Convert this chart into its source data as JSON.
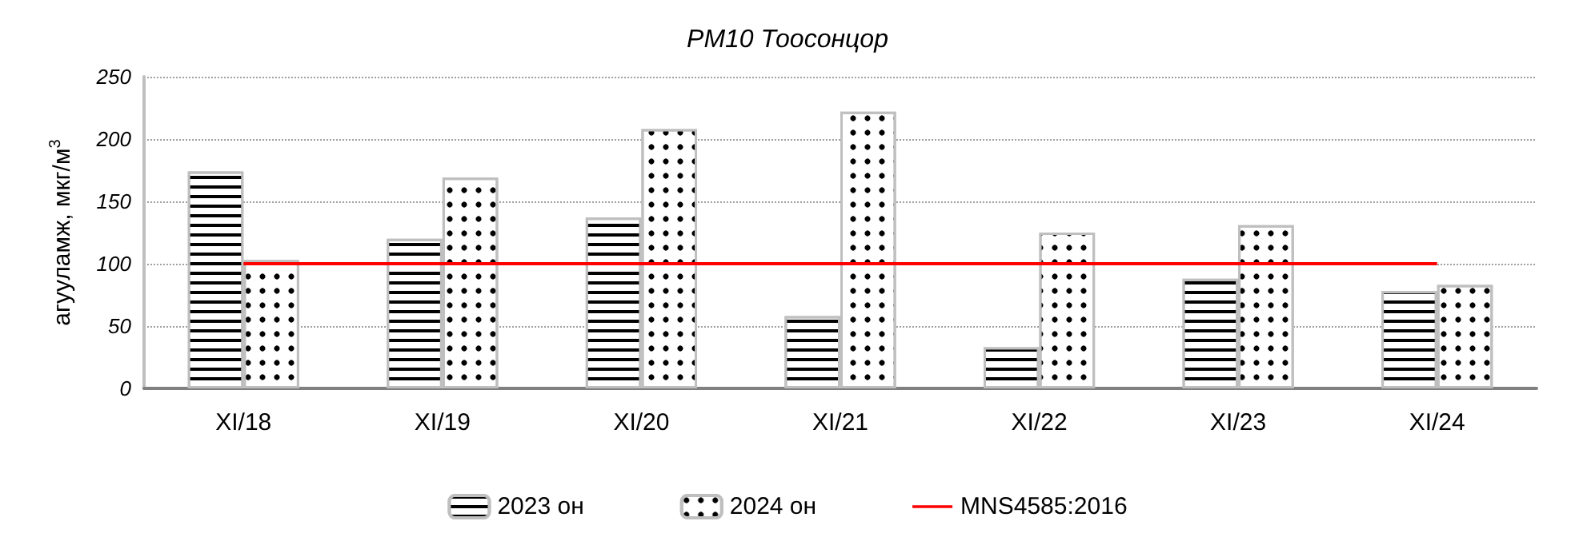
{
  "chart_data": {
    "type": "bar",
    "title": "PM10 Тоосонцор",
    "ylabel": "агууламж, мкг/м$^{3}$",
    "categories": [
      "XI/18",
      "XI/19",
      "XI/20",
      "XI/21",
      "XI/22",
      "XI/23",
      "XI/24"
    ],
    "series": [
      {
        "name": "2023 он",
        "color": "#ffffff",
        "values": [
          174,
          120,
          137,
          58,
          33,
          88,
          78
        ]
      },
      {
        "name": "2024 он",
        "color": "#ffffff",
        "values": [
          103,
          169,
          208,
          222,
          125,
          131,
          83
        ]
      },
      {
        "name": "MNS4585:2016",
        "type": "line",
        "color": "#ff0000",
        "values": [
          100,
          100,
          100,
          100,
          100,
          100,
          100
        ]
      }
    ],
    "ylim": [
      0,
      250
    ],
    "yticks": [
      0,
      50,
      100,
      150,
      200,
      250
    ],
    "grid": "y",
    "legend": "bottom",
    "marker": "none"
  }
}
